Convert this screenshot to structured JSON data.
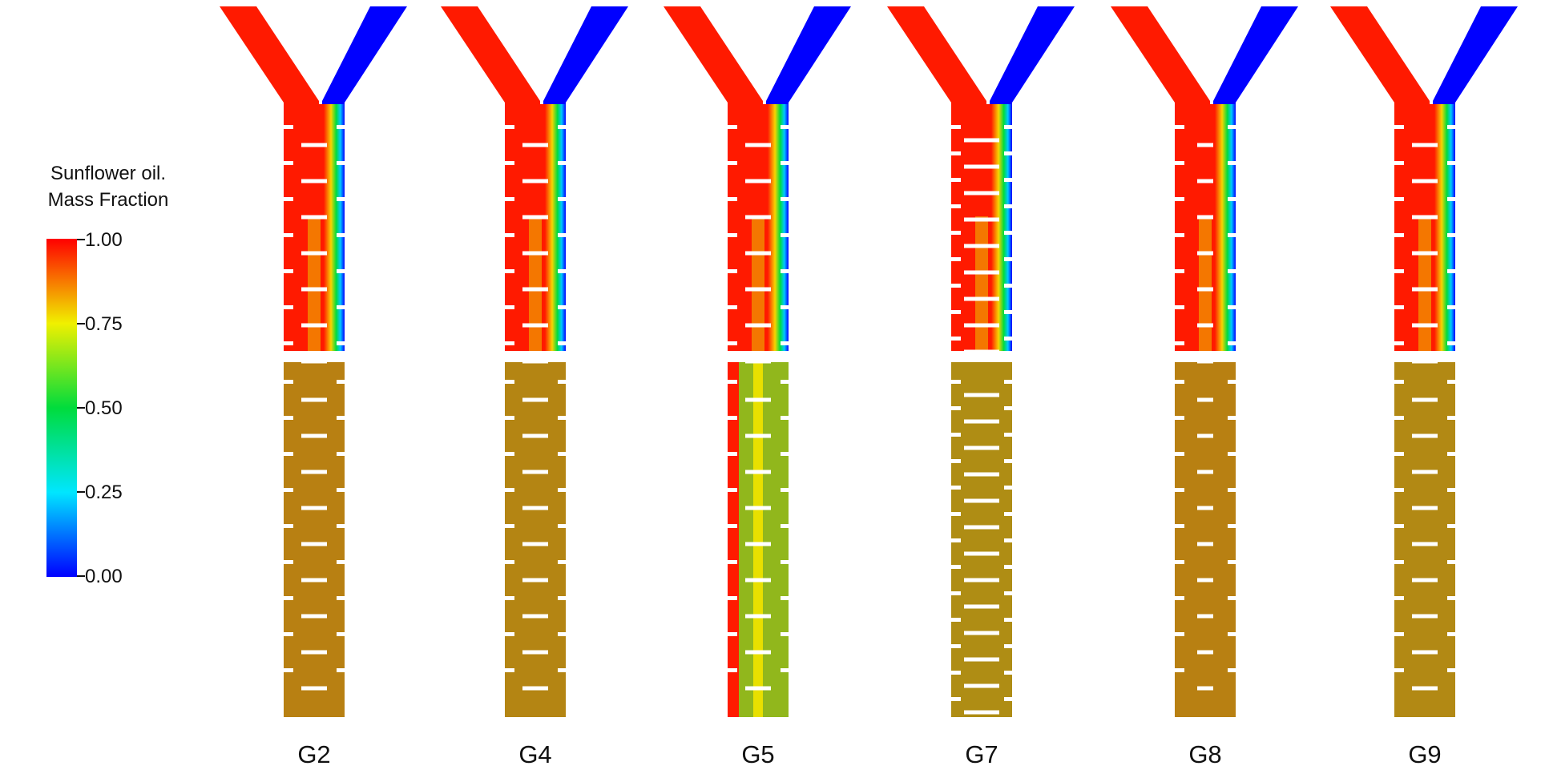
{
  "legend": {
    "title_line1": "Sunflower oil.",
    "title_line2": "Mass Fraction",
    "ticks": [
      "1.00",
      "0.75",
      "0.50",
      "0.25",
      "0.00"
    ]
  },
  "colors": {
    "oil": "#ff1a00",
    "water": "#0000ff",
    "mixed": "#7ed321",
    "background": "#ffffff"
  },
  "panels": [
    {
      "label": "G2",
      "lower_mixing_fraction": 0.55,
      "baffle_style": "short"
    },
    {
      "label": "G4",
      "lower_mixing_fraction": 0.58,
      "baffle_style": "short"
    },
    {
      "label": "G5",
      "lower_mixing_fraction": 0.85,
      "baffle_style": "short"
    },
    {
      "label": "G7",
      "lower_mixing_fraction": 0.62,
      "baffle_style": "long"
    },
    {
      "label": "G8",
      "lower_mixing_fraction": 0.55,
      "baffle_style": "narrow"
    },
    {
      "label": "G9",
      "lower_mixing_fraction": 0.6,
      "baffle_style": "short"
    }
  ]
}
